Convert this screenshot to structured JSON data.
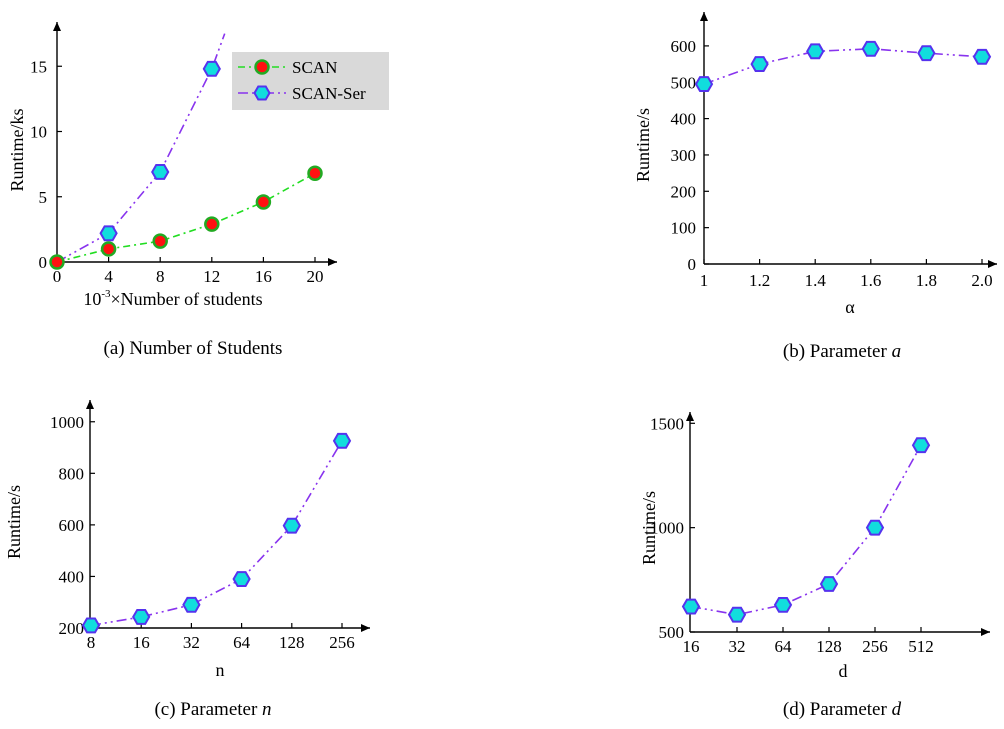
{
  "figure": {
    "panels": [
      {
        "caption": "(a) Number of Students",
        "caption_param": ""
      },
      {
        "caption": "(b) Parameter ",
        "caption_param": "a"
      },
      {
        "caption": "(c) Parameter ",
        "caption_param": "n"
      },
      {
        "caption": "(d) Parameter ",
        "caption_param": "d"
      }
    ]
  },
  "chart_data": [
    {
      "type": "line",
      "title": "",
      "xlabel_sup": "10-3",
      "xlabel": "×Number of students",
      "ylabel": "Runtime/ks",
      "x": [
        0,
        4,
        8,
        12,
        16,
        20
      ],
      "x_ticks": [
        "0",
        "4",
        "8",
        "12",
        "16",
        "20"
      ],
      "y_ticks": [
        "0",
        "5",
        "10",
        "15"
      ],
      "xlim": [
        0,
        22
      ],
      "ylim": [
        0,
        17
      ],
      "legend_position": "top-right",
      "series": [
        {
          "name": "SCAN",
          "color": "#22dd22",
          "marker_fill": "#ff1111",
          "marker_edge": "#22aa22",
          "values": [
            0,
            1.0,
            1.6,
            2.9,
            4.6,
            6.8
          ]
        },
        {
          "name": "SCAN-Ser",
          "color": "#8833ee",
          "marker_fill": "#11dddd",
          "marker_edge": "#5533ee",
          "values": [
            0,
            2.2,
            6.9,
            14.8,
            null,
            null
          ],
          "continues_to": [
            13,
            17.5
          ]
        }
      ]
    },
    {
      "type": "line",
      "title": "",
      "xlabel": "α",
      "ylabel": "Runtime/s",
      "x": [
        1.0,
        1.2,
        1.4,
        1.6,
        1.8,
        2.0
      ],
      "x_ticks": [
        "1",
        "1.2",
        "1.4",
        "1.6",
        "1.8",
        "2.0"
      ],
      "y_ticks": [
        "0",
        "100",
        "200",
        "300",
        "400",
        "500",
        "600"
      ],
      "xlim": [
        1.0,
        2.05
      ],
      "ylim": [
        0,
        660
      ],
      "series": [
        {
          "color": "#8833ee",
          "marker_fill": "#11dddd",
          "marker_edge": "#5533ee",
          "values": [
            495,
            550,
            585,
            592,
            580,
            570
          ]
        }
      ]
    },
    {
      "type": "line",
      "title": "",
      "xlabel": "n",
      "ylabel": "Runtime/s",
      "x_categories": [
        "8",
        "16",
        "32",
        "64",
        "128",
        "256"
      ],
      "y_ticks": [
        "200",
        "400",
        "600",
        "800",
        "1000"
      ],
      "ylim": [
        200,
        1030
      ],
      "series": [
        {
          "color": "#8833ee",
          "marker_fill": "#11dddd",
          "marker_edge": "#5533ee",
          "values": [
            210,
            243,
            290,
            390,
            597,
            926
          ]
        }
      ]
    },
    {
      "type": "line",
      "title": "",
      "xlabel": "d",
      "ylabel": "Runtime/s",
      "x_categories": [
        "16",
        "32",
        "64",
        "128",
        "256",
        "512"
      ],
      "y_ticks": [
        "500",
        "1000",
        "1500"
      ],
      "ylim": [
        500,
        1560
      ],
      "series": [
        {
          "color": "#8833ee",
          "marker_fill": "#11dddd",
          "marker_edge": "#5533ee",
          "values": [
            622,
            583,
            630,
            730,
            1000,
            1395
          ]
        }
      ]
    }
  ]
}
